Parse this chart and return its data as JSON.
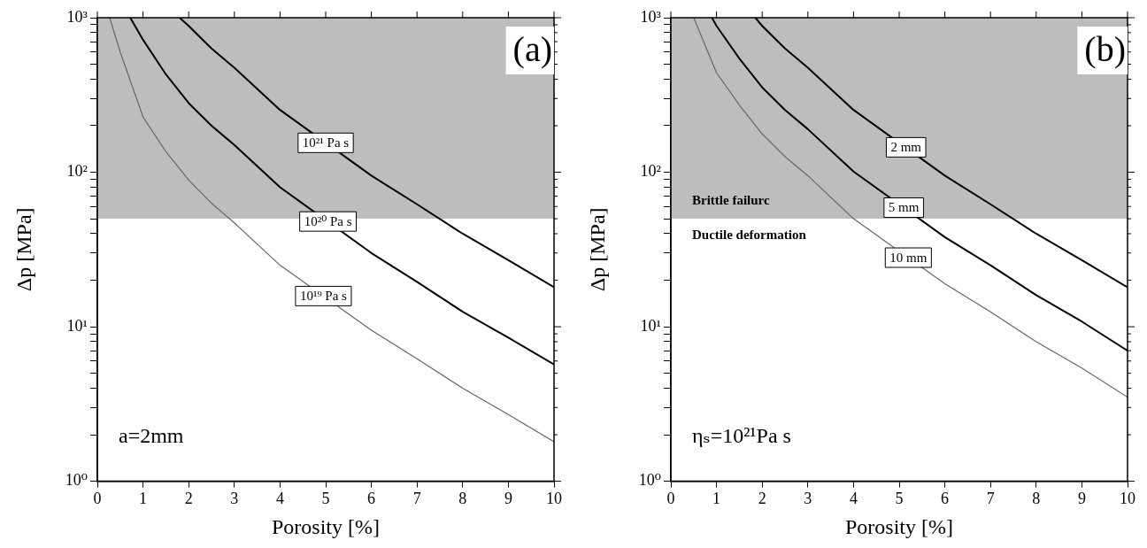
{
  "chart_data": [
    {
      "type": "line",
      "xlabel": "Porosity [%]",
      "ylabel": "Δp [MPa]",
      "log": "y",
      "grid": false,
      "legend": false,
      "marker": "none",
      "line_style": "solid",
      "xlim": [
        0,
        10
      ],
      "xticks": [
        0,
        1,
        2,
        3,
        4,
        5,
        6,
        7,
        8,
        9,
        10
      ],
      "ylim": [
        1,
        1000
      ],
      "yticks": [
        {
          "value": 1,
          "label": "10⁰"
        },
        {
          "value": 2,
          "label": null
        },
        {
          "value": 3,
          "label": null
        },
        {
          "value": 4,
          "label": null
        },
        {
          "value": 5,
          "label": null
        },
        {
          "value": 6,
          "label": null
        },
        {
          "value": 7,
          "label": null
        },
        {
          "value": 8,
          "label": null
        },
        {
          "value": 9,
          "label": null
        },
        {
          "value": 10,
          "label": "10¹"
        },
        {
          "value": 20,
          "label": null
        },
        {
          "value": 30,
          "label": null
        },
        {
          "value": 40,
          "label": null
        },
        {
          "value": 50,
          "label": null
        },
        {
          "value": 60,
          "label": null
        },
        {
          "value": 70,
          "label": null
        },
        {
          "value": 80,
          "label": null
        },
        {
          "value": 90,
          "label": null
        },
        {
          "value": 100,
          "label": "10²"
        },
        {
          "value": 200,
          "label": null
        },
        {
          "value": 300,
          "label": null
        },
        {
          "value": 400,
          "label": null
        },
        {
          "value": 500,
          "label": null
        },
        {
          "value": 600,
          "label": null
        },
        {
          "value": 700,
          "label": null
        },
        {
          "value": 800,
          "label": null
        },
        {
          "value": 900,
          "label": null
        },
        {
          "value": 1000,
          "label": "10³"
        }
      ],
      "bands": [
        {
          "axis": "y",
          "from": 50,
          "to": 1000,
          "color": "#bdbdbd"
        }
      ],
      "series": [
        {
          "color": "#000000",
          "x": [
            1.8,
            2,
            2.5,
            3,
            4,
            6,
            7,
            8,
            9,
            10
          ],
          "values": [
            1000,
            885,
            632,
            474,
            253,
            95,
            62,
            40,
            27,
            18
          ]
        },
        {
          "color": "#000000",
          "x": [
            0.72,
            1,
            1.5,
            2,
            2.5,
            3,
            4,
            6,
            7,
            8,
            9,
            10
          ],
          "values": [
            1000,
            720,
            430,
            280,
            200,
            150,
            80,
            30,
            19.5,
            12.5,
            8.5,
            5.7
          ]
        },
        {
          "color": "#666666",
          "x": [
            0.27,
            0.5,
            1,
            1.5,
            2,
            2.5,
            3,
            4,
            6,
            7,
            8,
            9,
            10
          ],
          "values": [
            1000,
            600,
            228,
            136,
            89,
            63,
            47,
            25,
            9.5,
            6.2,
            4,
            2.7,
            1.8
          ]
        }
      ],
      "annotations": [
        "(a)",
        "a=2mm",
        {
          "text": "10²¹ Pa s",
          "x": 5,
          "y": 155
        },
        {
          "text": "10²⁰ Pa s",
          "x": 5.05,
          "y": 48
        },
        {
          "text": "10¹⁹ Pa s",
          "x": 4.95,
          "y": 15.8
        }
      ]
    },
    {
      "type": "line",
      "xlabel": "Porosity [%]",
      "ylabel": "Δp [MPa]",
      "log": "y",
      "grid": false,
      "legend": false,
      "marker": "none",
      "line_style": "solid",
      "xlim": [
        0,
        10
      ],
      "xticks": [
        0,
        1,
        2,
        3,
        4,
        5,
        6,
        7,
        8,
        9,
        10
      ],
      "ylim": [
        1,
        1000
      ],
      "yticks": [
        {
          "value": 1,
          "label": "10⁰"
        },
        {
          "value": 2,
          "label": null
        },
        {
          "value": 3,
          "label": null
        },
        {
          "value": 4,
          "label": null
        },
        {
          "value": 5,
          "label": null
        },
        {
          "value": 6,
          "label": null
        },
        {
          "value": 7,
          "label": null
        },
        {
          "value": 8,
          "label": null
        },
        {
          "value": 9,
          "label": null
        },
        {
          "value": 10,
          "label": "10¹"
        },
        {
          "value": 20,
          "label": null
        },
        {
          "value": 30,
          "label": null
        },
        {
          "value": 40,
          "label": null
        },
        {
          "value": 50,
          "label": null
        },
        {
          "value": 60,
          "label": null
        },
        {
          "value": 70,
          "label": null
        },
        {
          "value": 80,
          "label": null
        },
        {
          "value": 90,
          "label": null
        },
        {
          "value": 100,
          "label": "10²"
        },
        {
          "value": 200,
          "label": null
        },
        {
          "value": 300,
          "label": null
        },
        {
          "value": 400,
          "label": null
        },
        {
          "value": 500,
          "label": null
        },
        {
          "value": 600,
          "label": null
        },
        {
          "value": 700,
          "label": null
        },
        {
          "value": 800,
          "label": null
        },
        {
          "value": 900,
          "label": null
        },
        {
          "value": 1000,
          "label": "10³"
        }
      ],
      "bands": [
        {
          "axis": "y",
          "from": 50,
          "to": 1000,
          "color": "#bdbdbd",
          "label": "Brittle failurc"
        }
      ],
      "series": [
        {
          "color": "#000000",
          "x": [
            1.85,
            2,
            2.5,
            3,
            4,
            6,
            7,
            8,
            9,
            10
          ],
          "values": [
            1000,
            885,
            632,
            474,
            253,
            95,
            62,
            40,
            27,
            18
          ]
        },
        {
          "color": "#000000",
          "x": [
            0.9,
            1,
            1.5,
            2,
            2.5,
            3,
            4,
            6,
            7,
            8,
            9,
            10
          ],
          "values": [
            1000,
            885,
            544,
            354,
            253,
            190,
            101,
            38,
            25,
            16,
            10.8,
            7
          ]
        },
        {
          "color": "#666666",
          "x": [
            0.5,
            1,
            1.5,
            2,
            2.5,
            3,
            4,
            6,
            7,
            8,
            9,
            10
          ],
          "values": [
            1000,
            440,
            272,
            177,
            126,
            95,
            50,
            19,
            12.5,
            8,
            5.4,
            3.5
          ]
        }
      ],
      "annotations": [
        "(b)",
        "ηₛ=10²¹Pa s",
        "Ductile deformation",
        {
          "text": "2 mm",
          "x": 5.15,
          "y": 145
        },
        {
          "text": "5 mm",
          "x": 5.1,
          "y": 59
        },
        {
          "text": "10 mm",
          "x": 5.2,
          "y": 28
        }
      ]
    }
  ]
}
